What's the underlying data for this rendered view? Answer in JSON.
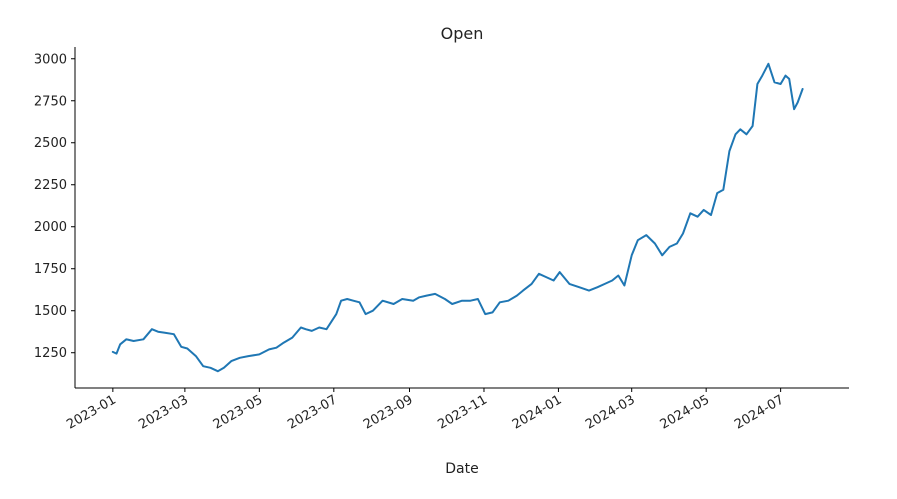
{
  "chart_data": {
    "type": "line",
    "title": "Open",
    "xlabel": "Date",
    "ylabel": "",
    "ylim": [
      1040,
      3070
    ],
    "xlim": [
      "2022-12-01",
      "2024-08-26"
    ],
    "grid": false,
    "legend": "none",
    "y_ticks": [
      1250,
      1500,
      1750,
      2000,
      2250,
      2500,
      2750,
      3000
    ],
    "y_tick_labels": [
      "1250",
      "1500",
      "1750",
      "2000",
      "2250",
      "2500",
      "2750",
      "3000"
    ],
    "x_ticks": [
      "2023-01-01",
      "2023-03-01",
      "2023-05-01",
      "2023-07-01",
      "2023-09-01",
      "2023-11-01",
      "2024-01-01",
      "2024-03-01",
      "2024-05-01",
      "2024-07-01"
    ],
    "x_tick_labels": [
      "2023-01",
      "2023-03",
      "2023-05",
      "2023-07",
      "2023-09",
      "2023-11",
      "2024-01",
      "2024-03",
      "2024-05",
      "2024-07"
    ],
    "series": [
      {
        "color": "#1f77b4",
        "x": [
          "2023-01-01",
          "2023-01-04",
          "2023-01-07",
          "2023-01-12",
          "2023-01-18",
          "2023-01-26",
          "2023-02-02",
          "2023-02-07",
          "2023-02-12",
          "2023-02-20",
          "2023-02-26",
          "2023-03-03",
          "2023-03-10",
          "2023-03-16",
          "2023-03-22",
          "2023-03-28",
          "2023-04-02",
          "2023-04-08",
          "2023-04-15",
          "2023-04-22",
          "2023-05-01",
          "2023-05-09",
          "2023-05-15",
          "2023-05-21",
          "2023-05-28",
          "2023-06-04",
          "2023-06-08",
          "2023-06-13",
          "2023-06-19",
          "2023-06-25",
          "2023-07-03",
          "2023-07-07",
          "2023-07-12",
          "2023-07-17",
          "2023-07-22",
          "2023-07-27",
          "2023-08-02",
          "2023-08-10",
          "2023-08-19",
          "2023-08-26",
          "2023-09-04",
          "2023-09-09",
          "2023-09-15",
          "2023-09-22",
          "2023-09-30",
          "2023-10-06",
          "2023-10-14",
          "2023-10-21",
          "2023-10-27",
          "2023-11-02",
          "2023-11-08",
          "2023-11-14",
          "2023-11-21",
          "2023-11-28",
          "2023-12-03",
          "2023-12-10",
          "2023-12-16",
          "2023-12-22",
          "2023-12-28",
          "2024-01-02",
          "2024-01-10",
          "2024-01-18",
          "2024-01-26",
          "2024-02-02",
          "2024-02-08",
          "2024-02-14",
          "2024-02-19",
          "2024-02-24",
          "2024-03-01",
          "2024-03-06",
          "2024-03-13",
          "2024-03-20",
          "2024-03-26",
          "2024-04-01",
          "2024-04-07",
          "2024-04-12",
          "2024-04-18",
          "2024-04-24",
          "2024-04-29",
          "2024-05-05",
          "2024-05-10",
          "2024-05-15",
          "2024-05-20",
          "2024-05-25",
          "2024-05-29",
          "2024-06-03",
          "2024-06-08",
          "2024-06-12",
          "2024-06-16",
          "2024-06-21",
          "2024-06-26",
          "2024-07-01",
          "2024-07-05",
          "2024-07-08",
          "2024-07-12",
          "2024-07-15",
          "2024-07-19"
        ],
        "y": [
          1255,
          1245,
          1300,
          1330,
          1320,
          1330,
          1390,
          1375,
          1370,
          1360,
          1285,
          1275,
          1230,
          1170,
          1160,
          1140,
          1160,
          1200,
          1220,
          1230,
          1240,
          1270,
          1280,
          1310,
          1340,
          1400,
          1390,
          1380,
          1400,
          1390,
          1480,
          1560,
          1570,
          1560,
          1550,
          1480,
          1500,
          1560,
          1540,
          1570,
          1560,
          1580,
          1590,
          1600,
          1570,
          1540,
          1560,
          1560,
          1570,
          1480,
          1490,
          1550,
          1560,
          1590,
          1620,
          1660,
          1720,
          1700,
          1680,
          1730,
          1660,
          1640,
          1620,
          1640,
          1660,
          1680,
          1710,
          1650,
          1830,
          1920,
          1950,
          1900,
          1830,
          1880,
          1900,
          1960,
          2080,
          2060,
          2100,
          2070,
          2200,
          2220,
          2450,
          2550,
          2580,
          2550,
          2600,
          2850,
          2900,
          2970,
          2860,
          2850,
          2900,
          2880,
          2700,
          2740,
          2820
        ]
      }
    ]
  }
}
